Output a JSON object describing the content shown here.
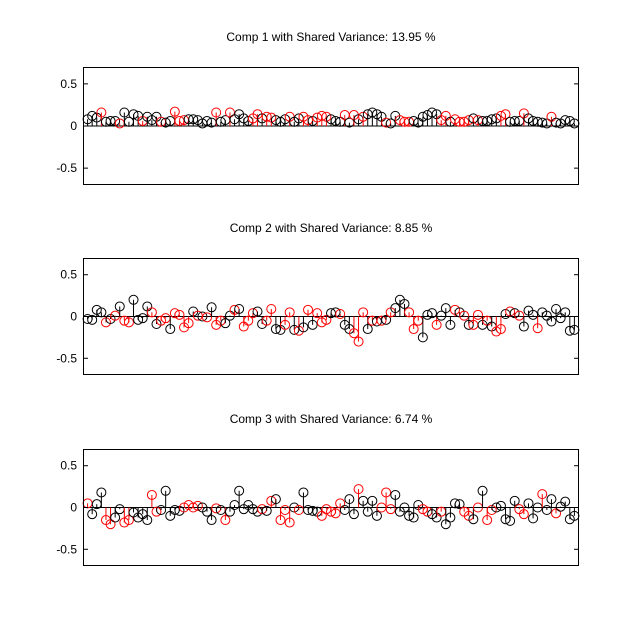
{
  "chart_data": [
    {
      "type": "stem",
      "title": "Comp 1 with Shared Variance: 13.95 %",
      "xlim": [
        0,
        108
      ],
      "ylim": [
        -0.7,
        0.7
      ],
      "yticks": [
        0.5,
        0,
        -0.5
      ],
      "ytick_labels": [
        "0.5",
        "0",
        "-0.5"
      ],
      "grid": false,
      "colors": [
        "black",
        "red"
      ],
      "marker_colors": [
        "k",
        "k",
        "k",
        "r",
        "k",
        "k",
        "k",
        "r",
        "k",
        "k",
        "k",
        "k",
        "r",
        "k",
        "k",
        "k",
        "r",
        "k",
        "k",
        "r",
        "r",
        "r",
        "k",
        "k",
        "k",
        "k",
        "k",
        "k",
        "r",
        "k",
        "k",
        "r",
        "k",
        "k",
        "k",
        "k",
        "r",
        "r",
        "k",
        "r",
        "r",
        "k",
        "k",
        "k",
        "r",
        "k",
        "k",
        "r",
        "r",
        "k",
        "r",
        "r",
        "r",
        "k",
        "k",
        "k",
        "r",
        "k",
        "r",
        "k",
        "r",
        "k",
        "k",
        "k",
        "k",
        "r",
        "k",
        "k",
        "r",
        "r",
        "r",
        "k",
        "k",
        "k",
        "k",
        "k",
        "k",
        "r",
        "r",
        "k",
        "r",
        "r",
        "r",
        "r",
        "k",
        "r",
        "k",
        "k",
        "k",
        "k",
        "r",
        "r",
        "k",
        "k",
        "k",
        "r",
        "k",
        "k",
        "k",
        "k",
        "k",
        "r",
        "k",
        "k",
        "k",
        "k",
        "k"
      ],
      "values": [
        0.08,
        0.12,
        0.1,
        0.16,
        0.05,
        0.06,
        0.06,
        0.03,
        0.16,
        0.05,
        0.14,
        0.12,
        0.06,
        0.11,
        0.07,
        0.11,
        0.05,
        0.04,
        0.06,
        0.17,
        0.06,
        0.07,
        0.08,
        0.08,
        0.07,
        0.03,
        0.06,
        0.04,
        0.16,
        0.05,
        0.07,
        0.16,
        0.08,
        0.14,
        0.09,
        0.06,
        0.09,
        0.14,
        0.09,
        0.11,
        0.1,
        0.07,
        0.05,
        0.08,
        0.11,
        0.05,
        0.09,
        0.11,
        0.07,
        0.06,
        0.1,
        0.12,
        0.11,
        0.08,
        0.06,
        0.05,
        0.13,
        0.04,
        0.13,
        0.08,
        0.11,
        0.14,
        0.16,
        0.14,
        0.11,
        0.04,
        0.03,
        0.12,
        0.07,
        0.05,
        0.05,
        0.06,
        0.04,
        0.11,
        0.13,
        0.16,
        0.14,
        0.07,
        0.12,
        0.05,
        0.08,
        0.05,
        0.05,
        0.07,
        0.09,
        0.07,
        0.06,
        0.06,
        0.08,
        0.09,
        0.12,
        0.14,
        0.05,
        0.06,
        0.06,
        0.15,
        0.09,
        0.06,
        0.05,
        0.04,
        0.03,
        0.11,
        0.04,
        0.03,
        0.07,
        0.06,
        0.03
      ]
    },
    {
      "type": "stem",
      "title": "Comp 2 with Shared Variance: 8.85 %",
      "xlim": [
        0,
        108
      ],
      "ylim": [
        -0.7,
        0.7
      ],
      "yticks": [
        0.5,
        0,
        -0.5
      ],
      "ytick_labels": [
        "0.5",
        "0",
        "-0.5"
      ],
      "grid": false,
      "colors": [
        "black",
        "red"
      ],
      "marker_colors": [
        "k",
        "k",
        "k",
        "k",
        "r",
        "k",
        "r",
        "k",
        "r",
        "r",
        "k",
        "k",
        "k",
        "k",
        "r",
        "k",
        "r",
        "r",
        "k",
        "r",
        "r",
        "r",
        "r",
        "k",
        "r",
        "k",
        "r",
        "k",
        "r",
        "r",
        "k",
        "k",
        "r",
        "k",
        "r",
        "r",
        "r",
        "k",
        "k",
        "r",
        "r",
        "k",
        "k",
        "r",
        "r",
        "k",
        "r",
        "k",
        "r",
        "k",
        "r",
        "r",
        "r",
        "k",
        "k",
        "r",
        "k",
        "k",
        "r",
        "r",
        "r",
        "k",
        "r",
        "k",
        "r",
        "k",
        "r",
        "k",
        "k",
        "k",
        "r",
        "r",
        "r",
        "k",
        "k",
        "k",
        "r",
        "k",
        "k",
        "k",
        "r",
        "k",
        "r",
        "k",
        "r",
        "r",
        "k",
        "r",
        "k",
        "r",
        "r",
        "k",
        "r",
        "k",
        "r",
        "k",
        "k",
        "k",
        "r",
        "k",
        "k",
        "k",
        "k",
        "k",
        "k",
        "k",
        "k"
      ],
      "values": [
        -0.03,
        -0.04,
        0.08,
        0.05,
        -0.07,
        -0.03,
        0.01,
        0.12,
        -0.05,
        -0.07,
        0.2,
        -0.04,
        -0.02,
        0.12,
        0.05,
        -0.09,
        -0.05,
        -0.02,
        -0.15,
        0.04,
        0.02,
        -0.13,
        -0.08,
        0.06,
        0.01,
        0.0,
        -0.01,
        0.11,
        -0.1,
        -0.05,
        -0.08,
        0.01,
        0.08,
        0.09,
        -0.12,
        -0.05,
        0.04,
        0.06,
        -0.09,
        -0.05,
        0.09,
        -0.15,
        -0.16,
        -0.1,
        0.05,
        -0.16,
        -0.17,
        -0.13,
        0.08,
        -0.1,
        0.04,
        -0.07,
        -0.04,
        0.04,
        0.05,
        0.03,
        -0.1,
        -0.15,
        -0.2,
        -0.3,
        0.05,
        -0.15,
        -0.05,
        -0.06,
        -0.05,
        -0.04,
        0.05,
        0.1,
        0.2,
        0.15,
        0.05,
        -0.15,
        -0.05,
        -0.25,
        0.02,
        0.04,
        -0.1,
        0.01,
        0.1,
        -0.1,
        0.08,
        0.05,
        0.01,
        -0.1,
        -0.1,
        0.02,
        -0.1,
        -0.05,
        -0.12,
        -0.18,
        -0.15,
        0.03,
        0.06,
        0.04,
        0.01,
        -0.12,
        0.07,
        0.02,
        -0.14,
        0.05,
        0.01,
        -0.06,
        0.09,
        -0.02,
        0.05,
        -0.17,
        -0.16
      ]
    },
    {
      "type": "stem",
      "title": "Comp 3 with Shared Variance: 6.74 %",
      "xlim": [
        0,
        108
      ],
      "ylim": [
        -0.7,
        0.7
      ],
      "yticks": [
        0.5,
        0,
        -0.5
      ],
      "ytick_labels": [
        "0.5",
        "0",
        "-0.5"
      ],
      "grid": false,
      "colors": [
        "black",
        "red"
      ],
      "marker_colors": [
        "r",
        "k",
        "k",
        "k",
        "r",
        "r",
        "k",
        "k",
        "r",
        "r",
        "k",
        "k",
        "k",
        "k",
        "r",
        "r",
        "k",
        "k",
        "k",
        "k",
        "k",
        "r",
        "r",
        "r",
        "r",
        "k",
        "k",
        "k",
        "r",
        "k",
        "r",
        "k",
        "k",
        "k",
        "k",
        "k",
        "k",
        "k",
        "r",
        "k",
        "r",
        "k",
        "r",
        "r",
        "r",
        "k",
        "r",
        "k",
        "k",
        "k",
        "k",
        "r",
        "r",
        "r",
        "r",
        "r",
        "k",
        "k",
        "k",
        "r",
        "k",
        "k",
        "k",
        "k",
        "r",
        "r",
        "r",
        "k",
        "k",
        "k",
        "k",
        "k",
        "k",
        "r",
        "r",
        "k",
        "k",
        "r",
        "k",
        "k",
        "k",
        "k",
        "r",
        "r",
        "k",
        "r",
        "k",
        "r",
        "r",
        "k",
        "k",
        "k",
        "k",
        "k",
        "r",
        "r",
        "k",
        "k",
        "k",
        "r",
        "k",
        "k",
        "r",
        "k",
        "k",
        "k",
        "k"
      ],
      "values": [
        0.05,
        -0.08,
        0.04,
        0.18,
        -0.15,
        -0.2,
        -0.12,
        -0.02,
        -0.18,
        -0.15,
        -0.06,
        -0.12,
        -0.08,
        -0.15,
        0.15,
        -0.05,
        -0.03,
        0.2,
        -0.1,
        -0.03,
        -0.04,
        0.0,
        0.03,
        0.0,
        0.02,
        0.0,
        -0.05,
        -0.15,
        -0.01,
        -0.03,
        -0.15,
        -0.05,
        0.03,
        0.2,
        -0.02,
        0.03,
        -0.02,
        -0.05,
        -0.02,
        -0.04,
        0.08,
        0.1,
        -0.15,
        -0.03,
        -0.18,
        0.0,
        -0.03,
        0.18,
        -0.03,
        -0.04,
        -0.05,
        -0.1,
        -0.02,
        -0.05,
        -0.07,
        0.05,
        -0.03,
        0.1,
        -0.08,
        0.22,
        0.08,
        -0.05,
        0.08,
        -0.1,
        0.0,
        0.18,
        -0.02,
        0.15,
        -0.05,
        0.0,
        -0.1,
        -0.12,
        0.03,
        -0.02,
        -0.05,
        -0.08,
        -0.12,
        -0.05,
        -0.2,
        -0.12,
        0.05,
        0.04,
        -0.05,
        -0.1,
        -0.14,
        0.0,
        0.2,
        -0.15,
        -0.03,
        0.0,
        0.02,
        -0.14,
        -0.16,
        0.08,
        -0.02,
        -0.08,
        0.05,
        -0.13,
        0.0,
        0.16,
        -0.03,
        0.1,
        -0.07,
        0.01,
        0.07,
        -0.14,
        -0.1
      ]
    }
  ]
}
